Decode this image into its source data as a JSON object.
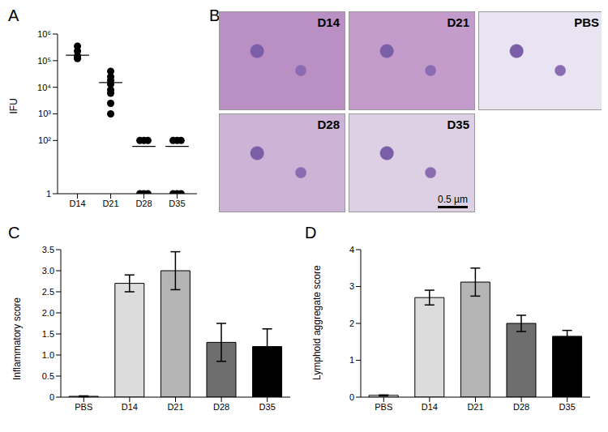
{
  "chart_data": [
    {
      "type": "scatter",
      "title": "A",
      "y_label": "IFU",
      "categories": [
        "D14",
        "D21",
        "D28",
        "D35"
      ],
      "values": [
        [
          350000,
          230000,
          150000,
          140000,
          130000,
          120000
        ],
        [
          40000,
          25000,
          18000,
          13000,
          8000,
          6000,
          2500,
          1000
        ],
        [
          100,
          100,
          100,
          1,
          1,
          1
        ],
        [
          100,
          100,
          100,
          1,
          1,
          1
        ]
      ],
      "means": [
        160000,
        15000,
        60,
        60
      ],
      "color": "#000000",
      "log": "y",
      "ylim": [
        1,
        1000000
      ],
      "yticks": [
        1,
        {
          "value": 100,
          "label": "10²"
        },
        {
          "value": 1000,
          "label": "10³"
        },
        {
          "value": 10000,
          "label": "10⁴"
        },
        {
          "value": 100000,
          "label": "10⁵"
        },
        {
          "value": 1000000,
          "label": "10⁶"
        }
      ]
    },
    {
      "type": "image",
      "title": "B",
      "labels": [
        "D14",
        "D21",
        "PBS",
        "D28",
        "D35"
      ],
      "scale_bar": "0.5 µm"
    },
    {
      "type": "bar",
      "title": "C",
      "y_label": "Inflammatory score",
      "categories": [
        "PBS",
        "D14",
        "D21",
        "D28",
        "D35"
      ],
      "values": [
        0.02,
        2.7,
        3.0,
        1.3,
        1.2
      ],
      "errors": [
        0.01,
        0.2,
        0.45,
        0.45,
        0.42
      ],
      "colors": [
        "#ffffff",
        "#dcdcdc",
        "#b4b4b4",
        "#6e6e6e",
        "#000000"
      ],
      "ylim": [
        0,
        3.5
      ],
      "yticks": [
        0,
        0.5,
        {
          "value": 1,
          "label": "1.0"
        },
        1.5,
        {
          "value": 2,
          "label": "2.0"
        },
        2.5,
        {
          "value": 3,
          "label": "3.0"
        },
        3.5
      ]
    },
    {
      "type": "bar",
      "title": "D",
      "y_label": "Lymphoid aggregate score",
      "categories": [
        "PBS",
        "D14",
        "D21",
        "D28",
        "D35"
      ],
      "values": [
        0.05,
        2.7,
        3.12,
        2.0,
        1.65
      ],
      "errors": [
        0.01,
        0.2,
        0.38,
        0.22,
        0.16
      ],
      "colors": [
        "#ffffff",
        "#dcdcdc",
        "#b4b4b4",
        "#6e6e6e",
        "#000000"
      ],
      "ylim": [
        0,
        4
      ],
      "yticks": [
        0,
        1,
        2,
        3,
        4
      ]
    }
  ]
}
